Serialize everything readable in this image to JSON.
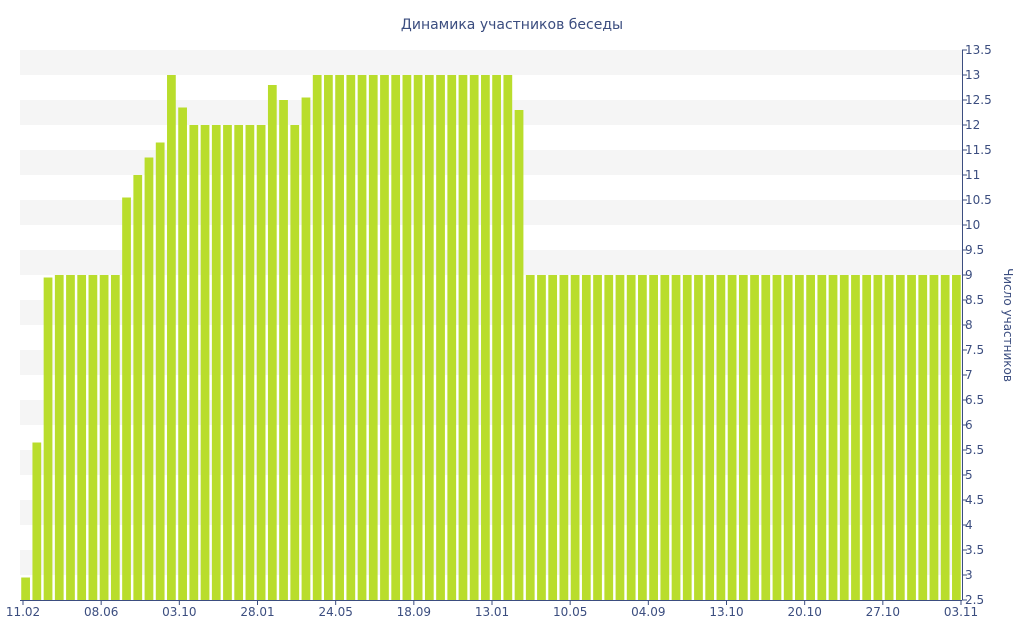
{
  "chart_data": {
    "type": "bar",
    "title": "Динамика участников беседы",
    "ylabel": "Число участников",
    "xlabel": "",
    "ylim": [
      2.5,
      13.5
    ],
    "y_ticks": [
      "2.5",
      "3",
      "3.5",
      "4",
      "4.5",
      "5",
      "5.5",
      "6",
      "6.5",
      "7",
      "7.5",
      "8",
      "8.5",
      "9",
      "9.5",
      "10",
      "10.5",
      "11",
      "11.5",
      "12",
      "12.5",
      "13",
      "13.5"
    ],
    "x_tick_labels": [
      "11.02",
      "08.06",
      "03.10",
      "28.01",
      "24.05",
      "18.09",
      "13.01",
      "10.05",
      "04.09",
      "13.10",
      "20.10",
      "27.10",
      "03.11"
    ],
    "values": [
      2.95,
      5.65,
      8.95,
      9,
      9,
      9,
      9,
      9,
      9,
      10.55,
      11,
      11.35,
      11.65,
      13,
      12.35,
      12,
      12,
      12,
      12,
      12,
      12,
      12,
      12.8,
      12.5,
      12,
      12.55,
      13,
      13,
      13,
      13,
      13,
      13,
      13,
      13,
      13,
      13,
      13,
      13,
      13,
      13,
      13,
      13,
      13,
      13,
      12.3,
      9,
      9,
      9,
      9,
      9,
      9,
      9,
      9,
      9,
      9,
      9,
      9,
      9,
      9,
      9,
      9,
      9,
      9,
      9,
      9,
      9,
      9,
      9,
      9,
      9,
      9,
      9,
      9,
      9,
      9,
      9,
      9,
      9,
      9,
      9,
      9,
      9,
      9,
      9
    ],
    "grid": true,
    "colors": {
      "bar": "#b9dd2c",
      "band": "#f5f5f5",
      "text": "#3b4d7f",
      "axis": "#3b4d7f"
    }
  }
}
